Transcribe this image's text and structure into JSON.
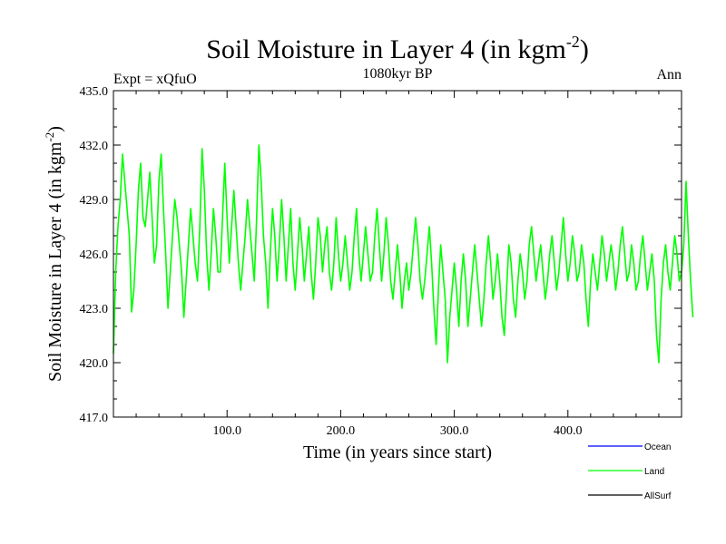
{
  "chart_data": {
    "type": "line",
    "title_main": "Soil Moisture in Layer 4 (in kgm",
    "title_sup": "-2",
    "title_end": ")",
    "subtitle": "1080kyr BP",
    "left_label": "Expt = xQfuO",
    "right_label": "Ann",
    "xlabel": "Time (in years since start)",
    "ylabel_main": "Soil Moisture in Layer 4 (in kgm",
    "ylabel_sup": "-2",
    "ylabel_end": ")",
    "xlim": [
      0,
      500
    ],
    "ylim": [
      417.0,
      435.0
    ],
    "x_ticks": [
      100,
      200,
      300,
      400
    ],
    "x_tick_labels": [
      "100.0",
      "200.0",
      "300.0",
      "400.0"
    ],
    "y_ticks": [
      417,
      420,
      423,
      426,
      429,
      432,
      435
    ],
    "y_tick_labels": [
      "417.0",
      "420.0",
      "423.0",
      "426.0",
      "429.0",
      "432.0",
      "435.0"
    ],
    "legend": [
      {
        "name": "Ocean",
        "color": "#0000ff"
      },
      {
        "name": "Land",
        "color": "#00ff00"
      },
      {
        "name": "AllSurf",
        "color": "#000000"
      }
    ],
    "series": [
      {
        "name": "Land",
        "color": "#00ff00",
        "x_start": 0,
        "x_step": 2,
        "values": [
          420.5,
          425.0,
          427.5,
          429.0,
          431.5,
          430.0,
          428.5,
          427.0,
          422.8,
          424.0,
          426.5,
          429.5,
          431.0,
          428.0,
          427.5,
          429.0,
          430.5,
          428.0,
          425.5,
          426.5,
          430.0,
          431.5,
          428.5,
          426.0,
          423.0,
          425.0,
          427.0,
          429.0,
          428.0,
          426.5,
          425.0,
          422.5,
          424.5,
          426.5,
          428.5,
          427.0,
          425.5,
          424.5,
          427.5,
          431.8,
          429.5,
          426.0,
          424.0,
          426.0,
          428.5,
          427.0,
          425.0,
          425.0,
          428.0,
          431.0,
          428.0,
          425.5,
          427.5,
          429.5,
          427.5,
          425.5,
          424.0,
          425.5,
          427.0,
          429.0,
          427.5,
          426.0,
          424.5,
          428.0,
          432.0,
          430.0,
          427.0,
          425.5,
          423.0,
          426.0,
          428.5,
          427.0,
          424.5,
          426.5,
          429.0,
          427.0,
          424.5,
          426.5,
          428.5,
          425.5,
          424.0,
          426.0,
          428.0,
          426.5,
          424.5,
          426.0,
          427.5,
          425.0,
          423.5,
          425.5,
          428.0,
          427.0,
          425.0,
          426.5,
          427.5,
          425.0,
          424.0,
          425.5,
          428.0,
          426.0,
          424.5,
          425.5,
          427.0,
          425.5,
          424.0,
          425.0,
          427.0,
          428.5,
          426.0,
          424.5,
          426.0,
          427.5,
          426.0,
          424.5,
          425.0,
          427.0,
          428.5,
          426.5,
          424.5,
          426.0,
          428.0,
          426.5,
          424.5,
          423.5,
          425.0,
          426.5,
          425.0,
          423.0,
          424.5,
          425.5,
          424.0,
          425.0,
          426.5,
          428.0,
          426.5,
          424.5,
          423.5,
          424.5,
          426.0,
          427.5,
          425.5,
          423.0,
          421.0,
          424.0,
          426.5,
          425.0,
          423.5,
          420.0,
          422.5,
          424.0,
          425.5,
          424.0,
          422.0,
          424.5,
          426.0,
          424.5,
          422.0,
          423.5,
          425.0,
          426.5,
          425.0,
          423.5,
          422.0,
          423.5,
          425.5,
          427.0,
          425.5,
          423.5,
          424.5,
          426.0,
          424.5,
          422.5,
          421.5,
          424.0,
          426.5,
          425.5,
          423.5,
          422.5,
          424.5,
          426.0,
          425.0,
          423.5,
          424.5,
          426.5,
          427.5,
          426.0,
          424.5,
          425.5,
          426.5,
          425.0,
          423.5,
          424.5,
          426.0,
          427.0,
          425.5,
          424.0,
          425.0,
          426.5,
          428.0,
          426.0,
          424.5,
          425.5,
          427.0,
          426.0,
          424.5,
          425.0,
          426.5,
          425.5,
          423.5,
          422.0,
          424.5,
          426.0,
          425.0,
          424.0,
          425.5,
          427.0,
          426.0,
          424.5,
          425.5,
          426.5,
          425.5,
          424.0,
          425.0,
          426.5,
          427.5,
          426.0,
          424.5,
          425.0,
          426.5,
          425.5,
          424.0,
          424.5,
          426.0,
          427.0,
          425.5,
          424.0,
          425.0,
          426.0,
          424.5,
          421.5,
          420.0,
          423.5,
          425.5,
          426.5,
          425.0,
          424.0,
          425.5,
          427.0,
          426.0,
          424.5,
          425.0,
          426.5,
          430.0,
          427.0,
          424.5,
          422.5
        ]
      }
    ]
  }
}
